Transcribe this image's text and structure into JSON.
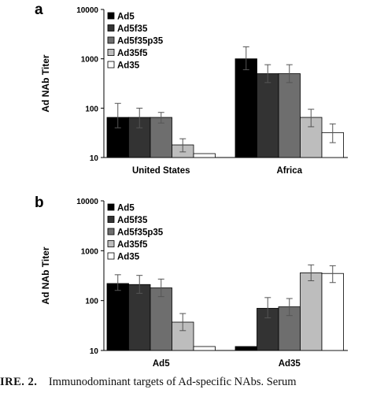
{
  "chart_data": [
    {
      "panel": "a",
      "type": "bar",
      "scale": "log",
      "ylabel": "Ad NAb Titer",
      "ylim": [
        10,
        10000
      ],
      "yticks": [
        "10",
        "100",
        "1000",
        "10000"
      ],
      "categories": [
        "United States",
        "Africa"
      ],
      "legend_position": "top-left",
      "grid": false,
      "series": [
        {
          "name": "Ad5",
          "color": "#000000",
          "values": [
            65,
            1000
          ],
          "errors": [
            [
              40,
              125
            ],
            [
              600,
              1750
            ]
          ]
        },
        {
          "name": "Ad5f35",
          "color": "#333333",
          "values": [
            65,
            500
          ],
          "errors": [
            [
              40,
              100
            ],
            [
              330,
              760
            ]
          ]
        },
        {
          "name": "Ad5f35p35",
          "color": "#6e6e6e",
          "values": [
            65,
            500
          ],
          "errors": [
            [
              50,
              82
            ],
            [
              330,
              760
            ]
          ]
        },
        {
          "name": "Ad35f5",
          "color": "#bdbdbd",
          "values": [
            18,
            65
          ],
          "errors": [
            [
              13,
              24
            ],
            [
              42,
              95
            ]
          ]
        },
        {
          "name": "Ad35",
          "color": "#ffffff",
          "values": [
            12,
            32
          ],
          "errors": [
            [
              12,
              12
            ],
            [
              20,
              48
            ]
          ]
        }
      ]
    },
    {
      "panel": "b",
      "type": "bar",
      "scale": "log",
      "ylabel": "Ad NAb Titer",
      "ylim": [
        10,
        10000
      ],
      "yticks": [
        "10",
        "100",
        "1000",
        "10000"
      ],
      "categories": [
        "Ad5",
        "Ad35"
      ],
      "legend_position": "top-left",
      "grid": false,
      "series": [
        {
          "name": "Ad5",
          "color": "#000000",
          "values": [
            220,
            12
          ],
          "errors": [
            [
              160,
              330
            ],
            [
              12,
              12
            ]
          ]
        },
        {
          "name": "Ad5f35",
          "color": "#333333",
          "values": [
            210,
            70
          ],
          "errors": [
            [
              140,
              320
            ],
            [
              45,
              115
            ]
          ]
        },
        {
          "name": "Ad5f35p35",
          "color": "#6e6e6e",
          "values": [
            180,
            75
          ],
          "errors": [
            [
              120,
              270
            ],
            [
              50,
              110
            ]
          ]
        },
        {
          "name": "Ad35f5",
          "color": "#bdbdbd",
          "values": [
            37,
            360
          ],
          "errors": [
            [
              25,
              55
            ],
            [
              250,
              520
            ]
          ]
        },
        {
          "name": "Ad35",
          "color": "#ffffff",
          "values": [
            12,
            350
          ],
          "errors": [
            [
              12,
              12
            ],
            [
              230,
              500
            ]
          ]
        }
      ]
    }
  ],
  "caption": {
    "label": "IRE. 2.",
    "text": "Immunodominant targets of Ad-specific NAbs. Serum"
  }
}
